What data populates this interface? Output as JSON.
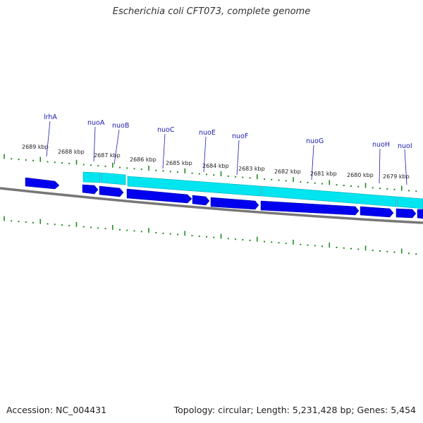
{
  "title": "Escherichia coli CFT073, complete genome",
  "footer": {
    "accession": "Accession: NC_004431",
    "summary": "Topology: circular; Length: 5,231,428 bp; Genes: 5,454"
  },
  "colors": {
    "backbone": "#777777",
    "cds": "#0000ee",
    "gene": "#00e5f0",
    "tick": "#228b22",
    "label": "#1a1ab0"
  },
  "ticks": [
    {
      "label": "2689 kbp"
    },
    {
      "label": "2688 kbp"
    },
    {
      "label": "2687 kbp"
    },
    {
      "label": "2686 kbp"
    },
    {
      "label": "2685 kbp"
    },
    {
      "label": "2684 kbp"
    },
    {
      "label": "2683 kbp"
    },
    {
      "label": "2682 kbp"
    },
    {
      "label": "2681 kbp"
    },
    {
      "label": "2680 kbp"
    },
    {
      "label": "2679 kbp"
    }
  ],
  "genes": [
    {
      "name": "lrhA"
    },
    {
      "name": "nuoA"
    },
    {
      "name": "nuoB"
    },
    {
      "name": "nuoC"
    },
    {
      "name": "nuoE"
    },
    {
      "name": "nuoF"
    },
    {
      "name": "nuoG"
    },
    {
      "name": "nuoH"
    },
    {
      "name": "nuoI"
    }
  ]
}
